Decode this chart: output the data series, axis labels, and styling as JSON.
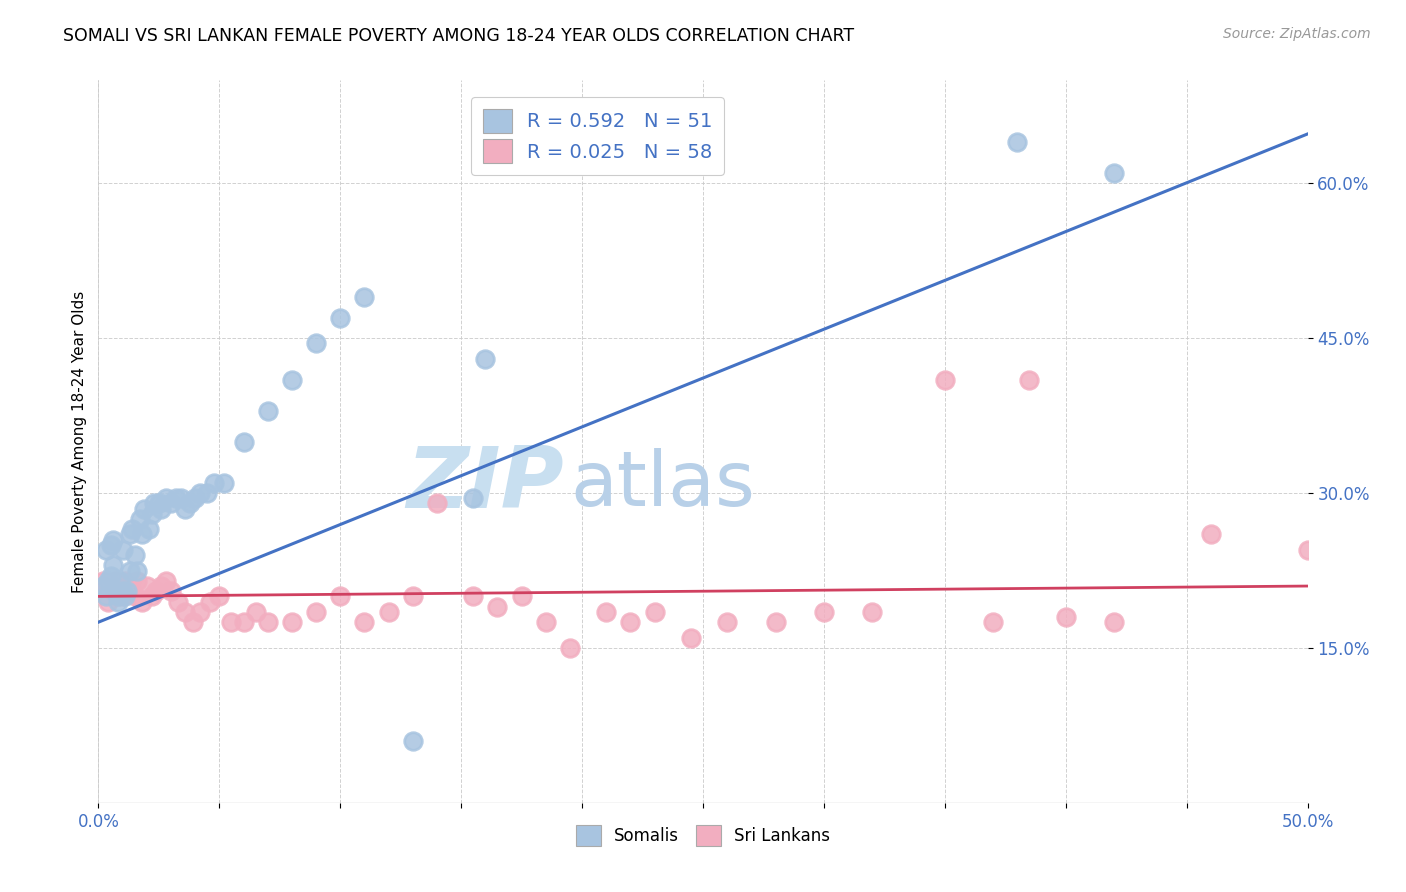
{
  "title": "SOMALI VS SRI LANKAN FEMALE POVERTY AMONG 18-24 YEAR OLDS CORRELATION CHART",
  "source": "Source: ZipAtlas.com",
  "ylabel": "Female Poverty Among 18-24 Year Olds",
  "xlim": [
    0.0,
    0.5
  ],
  "ylim": [
    0.0,
    0.7
  ],
  "yticks": [
    0.15,
    0.3,
    0.45,
    0.6
  ],
  "ytick_labels": [
    "15.0%",
    "30.0%",
    "45.0%",
    "60.0%"
  ],
  "xtick_vals": [
    0.0,
    0.05,
    0.1,
    0.15,
    0.2,
    0.25,
    0.3,
    0.35,
    0.4,
    0.45,
    0.5
  ],
  "xtick_labels": [
    "0.0%",
    "",
    "",
    "",
    "",
    "",
    "",
    "",
    "",
    "",
    "50.0%"
  ],
  "somali_R": "0.592",
  "somali_N": "51",
  "srilanka_R": "0.025",
  "srilanka_N": "58",
  "somali_color": "#a8c4e0",
  "srilanka_color": "#f2aec0",
  "somali_line_color": "#4472c4",
  "srilanka_line_color": "#d04060",
  "legend_text_color": "#4472c4",
  "watermark_zip": "ZIP",
  "watermark_atlas": "atlas",
  "watermark_color_zip": "#c8dff0",
  "watermark_color_atlas": "#b8d0e8",
  "somali_line_x0": 0.0,
  "somali_line_y0": 0.175,
  "somali_line_x1": 0.5,
  "somali_line_y1": 0.648,
  "srilanka_line_x0": 0.0,
  "srilanka_line_y0": 0.2,
  "srilanka_line_x1": 0.5,
  "srilanka_line_y1": 0.21,
  "somali_x": [
    0.002,
    0.003,
    0.003,
    0.004,
    0.005,
    0.005,
    0.006,
    0.006,
    0.007,
    0.008,
    0.008,
    0.009,
    0.01,
    0.01,
    0.011,
    0.012,
    0.013,
    0.013,
    0.014,
    0.015,
    0.016,
    0.017,
    0.018,
    0.019,
    0.021,
    0.022,
    0.023,
    0.025,
    0.026,
    0.028,
    0.03,
    0.032,
    0.034,
    0.036,
    0.038,
    0.04,
    0.042,
    0.045,
    0.048,
    0.052,
    0.06,
    0.07,
    0.08,
    0.09,
    0.1,
    0.11,
    0.13,
    0.155,
    0.38,
    0.42,
    0.16
  ],
  "somali_y": [
    0.21,
    0.2,
    0.245,
    0.215,
    0.25,
    0.22,
    0.255,
    0.23,
    0.205,
    0.2,
    0.195,
    0.215,
    0.205,
    0.245,
    0.2,
    0.205,
    0.225,
    0.26,
    0.265,
    0.24,
    0.225,
    0.275,
    0.26,
    0.285,
    0.265,
    0.28,
    0.29,
    0.29,
    0.285,
    0.295,
    0.29,
    0.295,
    0.295,
    0.285,
    0.29,
    0.295,
    0.3,
    0.3,
    0.31,
    0.31,
    0.35,
    0.38,
    0.41,
    0.445,
    0.47,
    0.49,
    0.06,
    0.295,
    0.64,
    0.61,
    0.43
  ],
  "srilanka_x": [
    0.002,
    0.003,
    0.004,
    0.005,
    0.006,
    0.007,
    0.008,
    0.009,
    0.01,
    0.011,
    0.013,
    0.014,
    0.015,
    0.016,
    0.018,
    0.02,
    0.022,
    0.024,
    0.026,
    0.028,
    0.03,
    0.033,
    0.036,
    0.039,
    0.042,
    0.046,
    0.05,
    0.055,
    0.06,
    0.065,
    0.07,
    0.08,
    0.09,
    0.1,
    0.11,
    0.12,
    0.13,
    0.14,
    0.155,
    0.165,
    0.175,
    0.185,
    0.195,
    0.21,
    0.22,
    0.23,
    0.245,
    0.26,
    0.28,
    0.3,
    0.32,
    0.35,
    0.37,
    0.385,
    0.4,
    0.42,
    0.46,
    0.5
  ],
  "srilanka_y": [
    0.215,
    0.21,
    0.195,
    0.21,
    0.205,
    0.215,
    0.2,
    0.21,
    0.2,
    0.215,
    0.21,
    0.205,
    0.2,
    0.215,
    0.195,
    0.21,
    0.2,
    0.205,
    0.21,
    0.215,
    0.205,
    0.195,
    0.185,
    0.175,
    0.185,
    0.195,
    0.2,
    0.175,
    0.175,
    0.185,
    0.175,
    0.175,
    0.185,
    0.2,
    0.175,
    0.185,
    0.2,
    0.29,
    0.2,
    0.19,
    0.2,
    0.175,
    0.15,
    0.185,
    0.175,
    0.185,
    0.16,
    0.175,
    0.175,
    0.185,
    0.185,
    0.41,
    0.175,
    0.41,
    0.18,
    0.175,
    0.26,
    0.245
  ]
}
